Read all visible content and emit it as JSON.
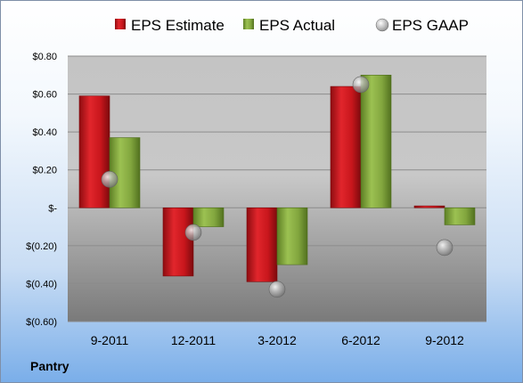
{
  "company": "Pantry",
  "chart_data": {
    "type": "bar",
    "categories": [
      "9-2011",
      "12-2011",
      "3-2012",
      "6-2012",
      "9-2012"
    ],
    "series": [
      {
        "name": "EPS Estimate",
        "kind": "bar",
        "color": "#c0151b",
        "values": [
          0.59,
          -0.36,
          -0.39,
          0.64,
          0.01
        ]
      },
      {
        "name": "EPS Actual",
        "kind": "bar",
        "color": "#7fa33b",
        "values": [
          0.37,
          -0.1,
          -0.3,
          0.7,
          -0.09
        ]
      },
      {
        "name": "EPS GAAP",
        "kind": "marker",
        "color": "#a9a9a9",
        "values": [
          0.15,
          -0.13,
          -0.43,
          0.65,
          -0.21
        ]
      }
    ],
    "ylim": [
      -0.6,
      0.8
    ],
    "yticks": [
      {
        "value": 0.8,
        "label": "$0.80"
      },
      {
        "value": 0.6,
        "label": "$0.60"
      },
      {
        "value": 0.4,
        "label": "$0.40"
      },
      {
        "value": 0.2,
        "label": "$0.20"
      },
      {
        "value": 0.0,
        "label": "$-"
      },
      {
        "value": -0.2,
        "label": "$(0.20)"
      },
      {
        "value": -0.4,
        "label": "$(0.40)"
      },
      {
        "value": -0.6,
        "label": "$(0.60)"
      }
    ],
    "grid": true,
    "legend_position": "top"
  }
}
